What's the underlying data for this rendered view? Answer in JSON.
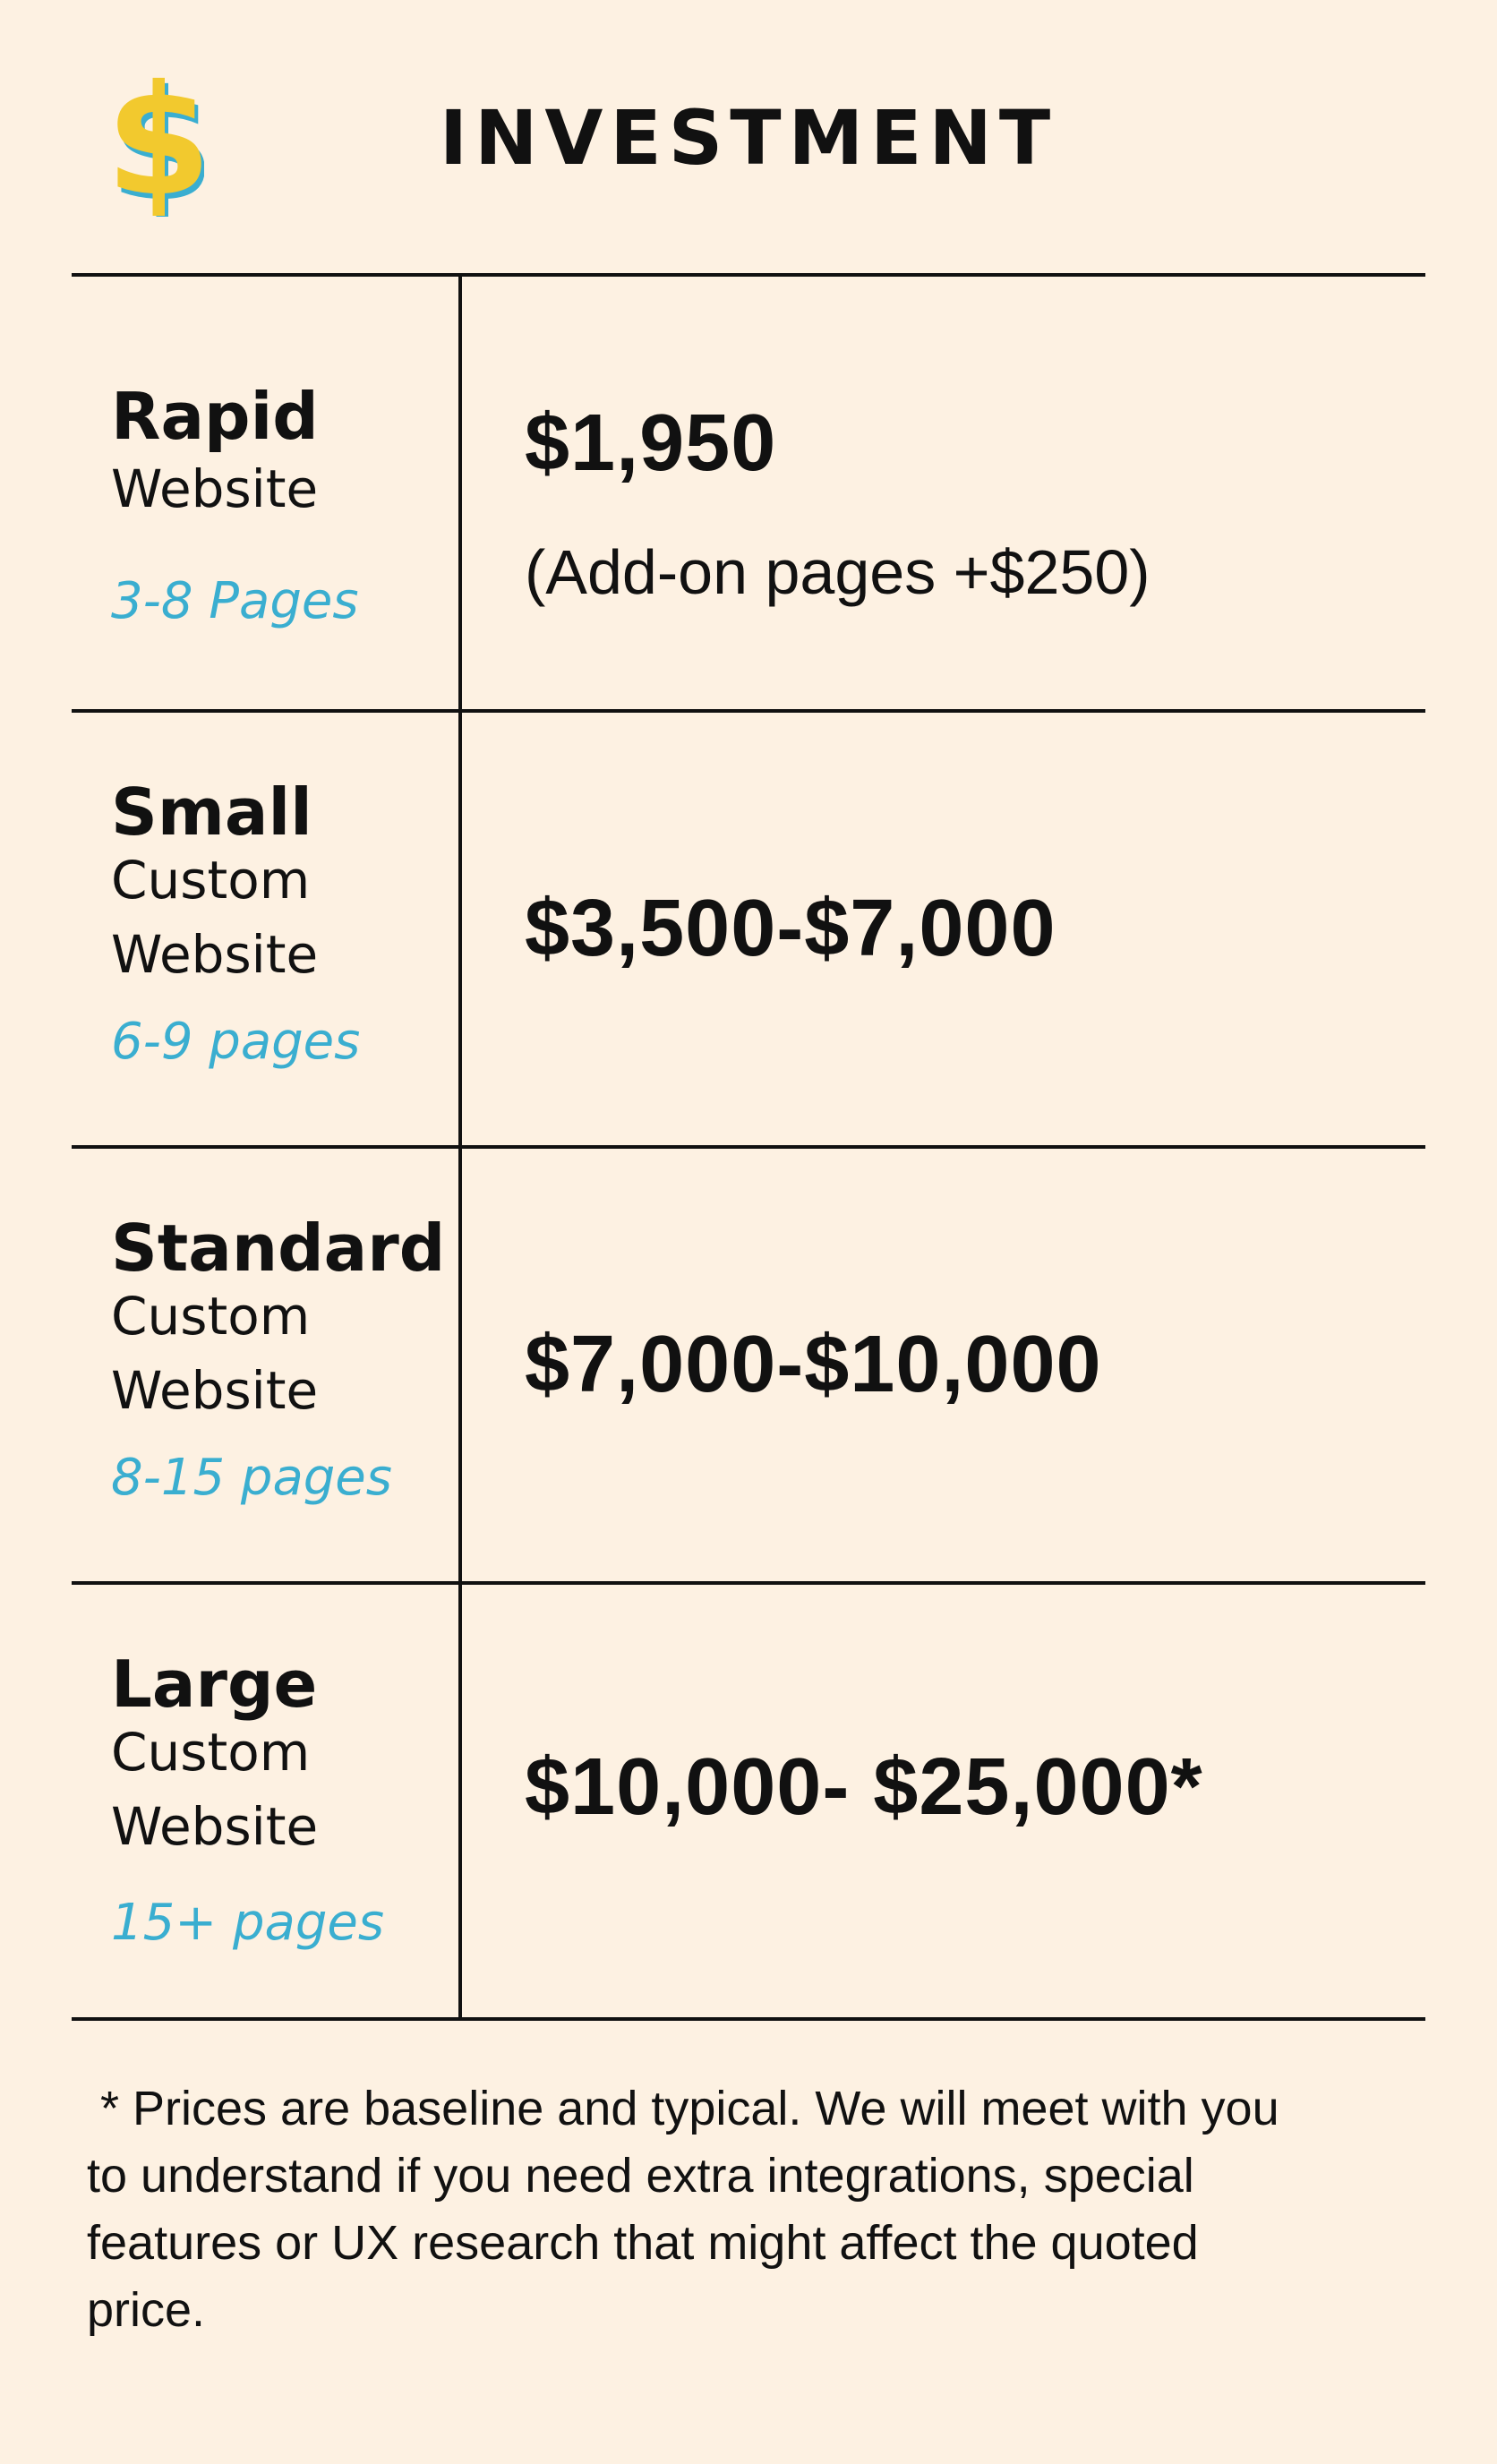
{
  "header": {
    "title": "INVESTMENT",
    "icon": "dollar-sign-icon",
    "icon_colors": {
      "fill": "#f2c92e",
      "shadow": "#3aaed0"
    }
  },
  "tiers": [
    {
      "name": "Rapid",
      "type_lines": [
        "Website"
      ],
      "pages": "3-8 Pages",
      "price": "$1,950",
      "addon": "(Add-on pages +$250)"
    },
    {
      "name": "Small",
      "type_lines": [
        "Custom",
        "Website"
      ],
      "pages": "6-9 pages",
      "price": "$3,500-$7,000"
    },
    {
      "name": "Standard",
      "type_lines": [
        "Custom",
        "Website"
      ],
      "pages": "8-15 pages",
      "price": "$7,000-$10,000"
    },
    {
      "name": "Large",
      "type_lines": [
        "Custom",
        "Website"
      ],
      "pages": "15+ pages",
      "price": "$10,000- $25,000*"
    }
  ],
  "footnote": {
    "lines": [
      " * Prices are baseline and typical. We will meet with you",
      "to understand if you need extra integrations, special",
      "features or UX research that might affect the quoted",
      "price."
    ]
  },
  "colors": {
    "background": "#fdf1e2",
    "accent_blue": "#3aaed0",
    "accent_yellow": "#f2c92e",
    "text": "#111111"
  }
}
